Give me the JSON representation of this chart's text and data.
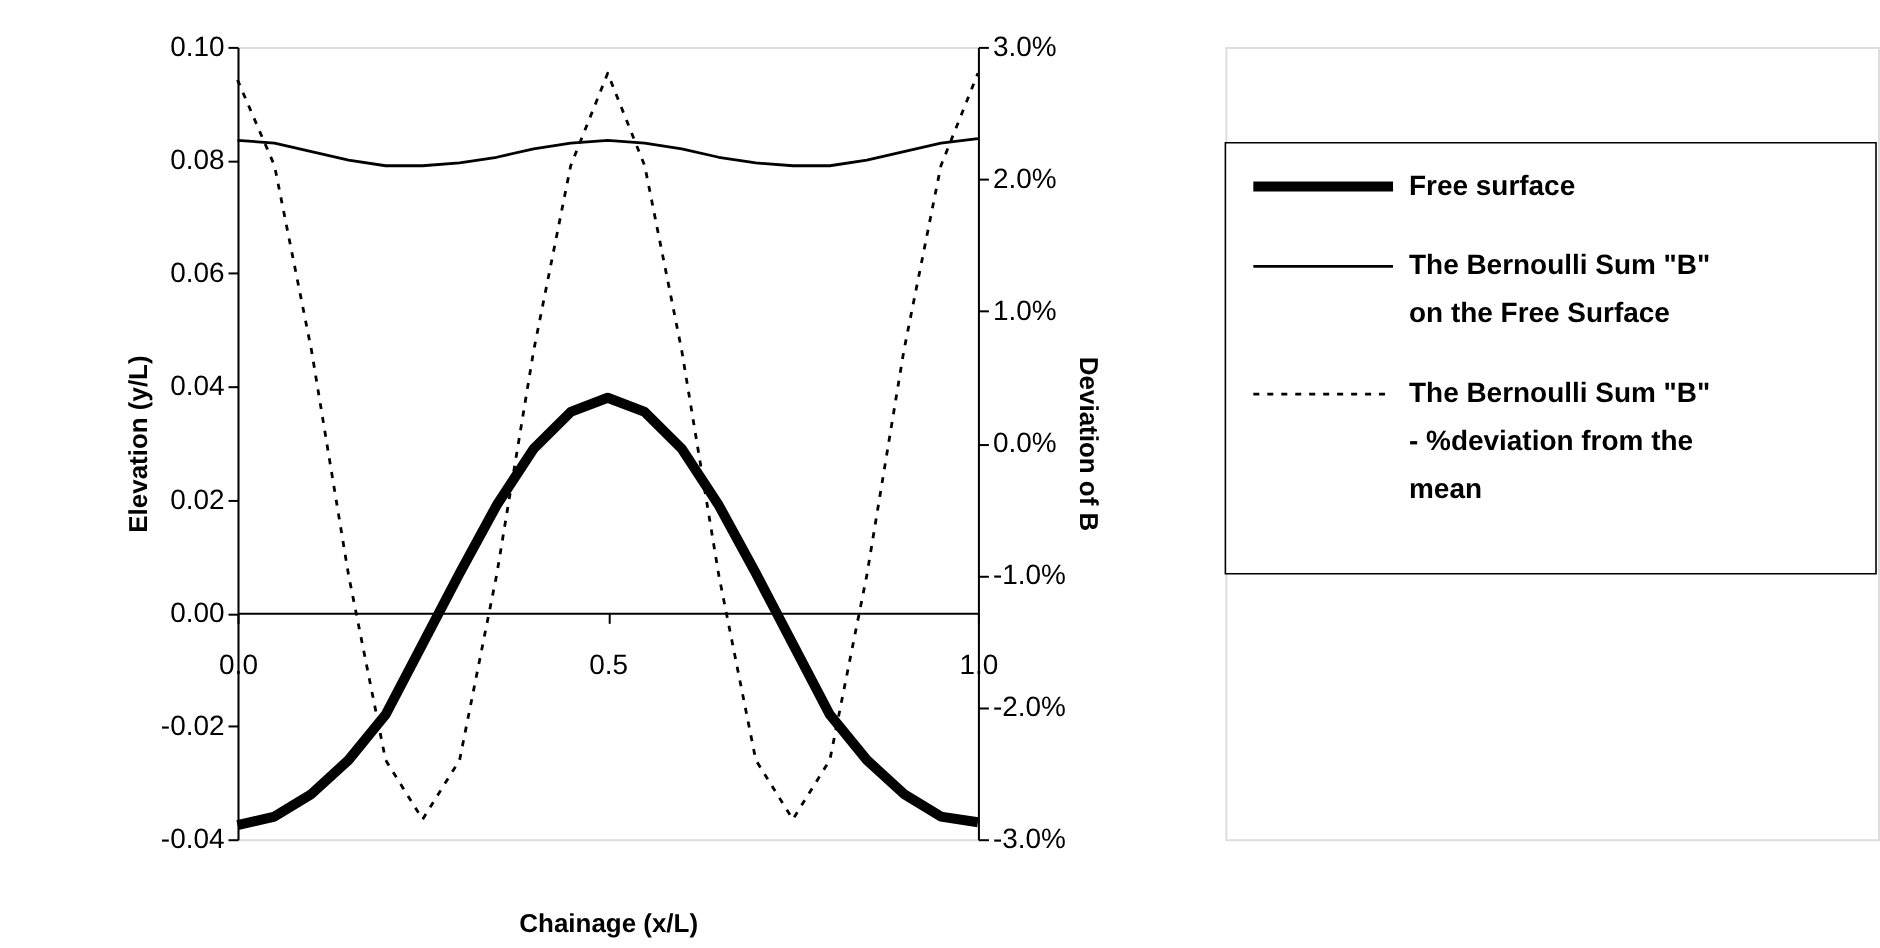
{
  "chart_data": {
    "type": "line",
    "xlabel": "Chainage (x/L)",
    "ylabel": "Elevation (y/L)",
    "y2label": "Deviation of B",
    "x": [
      0,
      0.05,
      0.1,
      0.15,
      0.2,
      0.25,
      0.3,
      0.35,
      0.4,
      0.45,
      0.5,
      0.55,
      0.6,
      0.65,
      0.7,
      0.75,
      0.8,
      0.85,
      0.9,
      0.95,
      1.0
    ],
    "series": [
      {
        "name": "Free surface",
        "color": "#000000",
        "line_style": "solid",
        "values": [
          -0.0375,
          -0.036,
          -0.032,
          -0.026,
          -0.018,
          -0.0055,
          0.007,
          0.019,
          0.029,
          0.0355,
          0.038,
          0.0355,
          0.029,
          0.019,
          0.007,
          -0.0055,
          -0.018,
          -0.026,
          -0.032,
          -0.036,
          -0.037
        ]
      },
      {
        "name": "The Bernoulli Sum \"B\" on the Free Surface",
        "color": "#000000",
        "line_style": "solid",
        "values": [
          0.0835,
          0.083,
          0.0815,
          0.08,
          0.079,
          0.079,
          0.0795,
          0.0805,
          0.082,
          0.083,
          0.0835,
          0.083,
          0.082,
          0.0805,
          0.0795,
          0.079,
          0.079,
          0.08,
          0.0815,
          0.083,
          0.0838
        ]
      },
      {
        "name": "The Bernoulli Sum \"B\" - %deviation from the mean",
        "color": "#000000",
        "line_style": "dotted",
        "axis": "y2",
        "values": [
          2.75,
          2.1,
          0.7,
          -1.0,
          -2.4,
          -2.85,
          -2.4,
          -1.0,
          0.7,
          2.1,
          2.8,
          2.1,
          0.7,
          -1.0,
          -2.4,
          -2.85,
          -2.4,
          -1.0,
          0.7,
          2.1,
          2.8
        ]
      }
    ],
    "xlim": [
      0,
      1
    ],
    "xticks": [
      {
        "value": 0,
        "label": "0.0"
      },
      {
        "value": 0.5,
        "label": "0.5"
      },
      {
        "value": 1,
        "label": "1.0"
      }
    ],
    "ylim": [
      -0.04,
      0.1
    ],
    "yticks": [
      {
        "value": -0.04,
        "label": "-0.04"
      },
      {
        "value": -0.02,
        "label": "-0.02"
      },
      {
        "value": 0,
        "label": "0.00"
      },
      {
        "value": 0.02,
        "label": "0.02"
      },
      {
        "value": 0.04,
        "label": "0.04"
      },
      {
        "value": 0.06,
        "label": "0.06"
      },
      {
        "value": 0.08,
        "label": "0.08"
      },
      {
        "value": 0.1,
        "label": "0.10"
      }
    ],
    "y2lim": [
      -3,
      3
    ],
    "y2ticks": [
      {
        "value": -3,
        "label": "-3.0%"
      },
      {
        "value": -2,
        "label": "-2.0%"
      },
      {
        "value": -1,
        "label": "-1.0%"
      },
      {
        "value": 0,
        "label": "0.0%"
      },
      {
        "value": 1,
        "label": "1.0%"
      },
      {
        "value": 2,
        "label": "2.0%"
      },
      {
        "value": 3,
        "label": "3.0%"
      }
    ],
    "grid": false,
    "legend": "right",
    "marker": "none"
  }
}
